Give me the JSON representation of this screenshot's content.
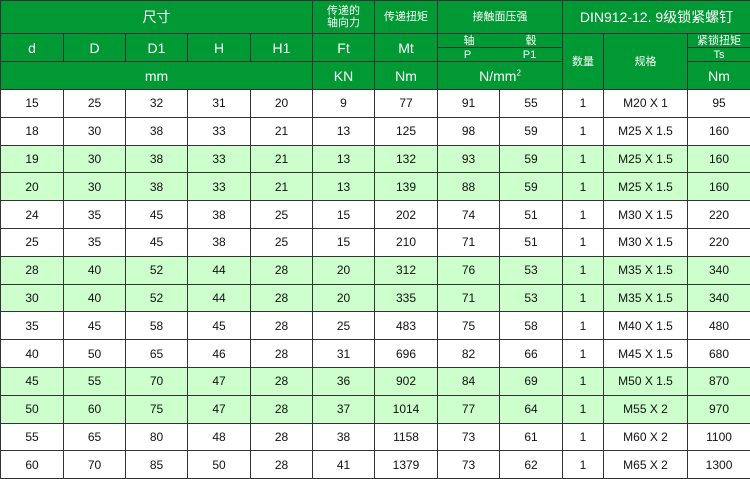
{
  "colors": {
    "header": "#009933",
    "highlight_row": "#ccffcc"
  },
  "header": {
    "dims": "尺寸",
    "axial_force": "传递的\n轴向力",
    "torque": "传递扭矩",
    "pressure": "接触面压强",
    "screw": "DIN912-12. 9级锁紧螺钉",
    "cols": [
      "d",
      "D",
      "D1",
      "H",
      "H1"
    ],
    "ft": "Ft",
    "mt": "Mt",
    "shaft": "轴",
    "hub": "毂",
    "p": "P",
    "p1": "P1",
    "qty": "数量",
    "spec": "规格",
    "lock_torque": "紧锁扭矩",
    "ts": "Ts",
    "mm": "mm",
    "kn": "KN",
    "nm": "Nm",
    "nmm": "N/mm",
    "nmm_sup": "2",
    "nm2": "Nm"
  },
  "rows": [
    [
      "15",
      "25",
      "32",
      "31",
      "20",
      "9",
      "77",
      "91",
      "55",
      "1",
      "M20 X 1",
      "95"
    ],
    [
      "18",
      "30",
      "38",
      "33",
      "21",
      "13",
      "125",
      "98",
      "59",
      "1",
      "M25 X 1.5",
      "160"
    ],
    [
      "19",
      "30",
      "38",
      "33",
      "21",
      "13",
      "132",
      "93",
      "59",
      "1",
      "M25 X 1.5",
      "160"
    ],
    [
      "20",
      "30",
      "38",
      "33",
      "21",
      "13",
      "139",
      "88",
      "59",
      "1",
      "M25 X 1.5",
      "160"
    ],
    [
      "24",
      "35",
      "45",
      "38",
      "25",
      "15",
      "202",
      "74",
      "51",
      "1",
      "M30 X 1.5",
      "220"
    ],
    [
      "25",
      "35",
      "45",
      "38",
      "25",
      "15",
      "210",
      "71",
      "51",
      "1",
      "M30 X 1.5",
      "220"
    ],
    [
      "28",
      "40",
      "52",
      "44",
      "28",
      "20",
      "312",
      "76",
      "53",
      "1",
      "M35 X 1.5",
      "340"
    ],
    [
      "30",
      "40",
      "52",
      "44",
      "28",
      "20",
      "335",
      "71",
      "53",
      "1",
      "M35 X 1.5",
      "340"
    ],
    [
      "35",
      "45",
      "58",
      "45",
      "28",
      "25",
      "483",
      "75",
      "58",
      "1",
      "M40 X 1.5",
      "480"
    ],
    [
      "40",
      "50",
      "65",
      "46",
      "28",
      "31",
      "696",
      "82",
      "66",
      "1",
      "M45 X 1.5",
      "680"
    ],
    [
      "45",
      "55",
      "70",
      "47",
      "28",
      "36",
      "902",
      "84",
      "69",
      "1",
      "M50 X 1.5",
      "870"
    ],
    [
      "50",
      "60",
      "75",
      "47",
      "28",
      "37",
      "1014",
      "77",
      "64",
      "1",
      "M55 X 2",
      "970"
    ],
    [
      "55",
      "65",
      "80",
      "48",
      "28",
      "38",
      "1158",
      "73",
      "61",
      "1",
      "M60 X 2",
      "1100"
    ],
    [
      "60",
      "70",
      "85",
      "50",
      "28",
      "41",
      "1379",
      "73",
      "62",
      "1",
      "M65 X 2",
      "1300"
    ]
  ]
}
